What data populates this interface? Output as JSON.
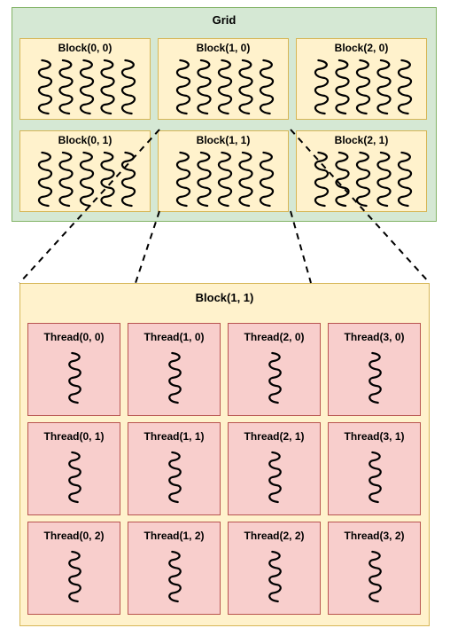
{
  "grid": {
    "title": "Grid",
    "blocks": [
      {
        "label": "Block(0, 0)"
      },
      {
        "label": "Block(1, 0)"
      },
      {
        "label": "Block(2, 0)"
      },
      {
        "label": "Block(0, 1)"
      },
      {
        "label": "Block(1, 1)"
      },
      {
        "label": "Block(2, 1)"
      }
    ]
  },
  "detail_block": {
    "title": "Block(1, 1)",
    "threads": [
      {
        "label": "Thread(0, 0)"
      },
      {
        "label": "Thread(1, 0)"
      },
      {
        "label": "Thread(2, 0)"
      },
      {
        "label": "Thread(3, 0)"
      },
      {
        "label": "Thread(0, 1)"
      },
      {
        "label": "Thread(1, 1)"
      },
      {
        "label": "Thread(2, 1)"
      },
      {
        "label": "Thread(3, 1)"
      },
      {
        "label": "Thread(0, 2)"
      },
      {
        "label": "Thread(1, 2)"
      },
      {
        "label": "Thread(2, 2)"
      },
      {
        "label": "Thread(3, 2)"
      }
    ]
  },
  "colors": {
    "grid_fill": "#d5e8d4",
    "grid_border": "#82b366",
    "block_fill": "#fff2cc",
    "block_border": "#d6b656",
    "thread_fill": "#f8cecc",
    "thread_border": "#b85450"
  },
  "icons": {
    "thread": "wavy-thread-icon"
  }
}
